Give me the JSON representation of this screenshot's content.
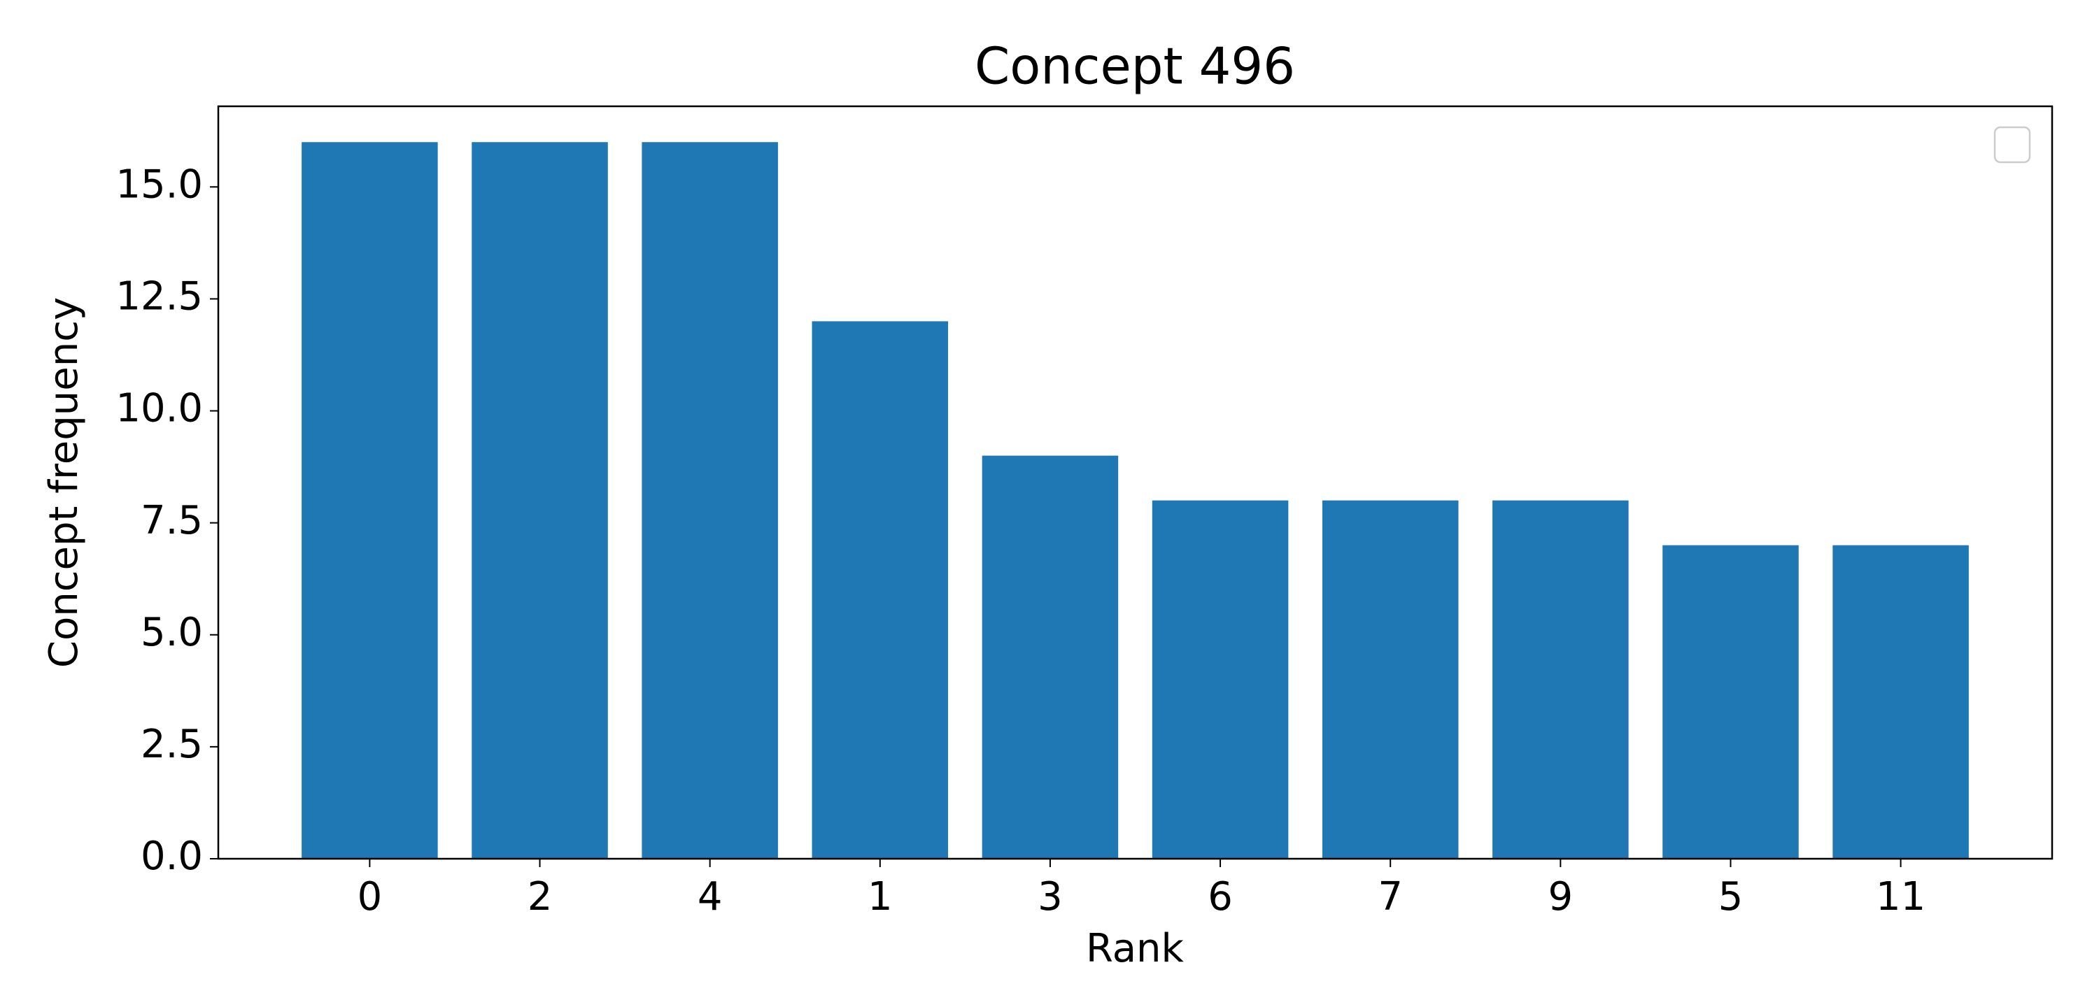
{
  "chart_data": {
    "type": "bar",
    "title": "Concept 496",
    "x_label": "Rank",
    "y_label": "Concept frequency",
    "categories": [
      "0",
      "2",
      "4",
      "1",
      "3",
      "6",
      "7",
      "9",
      "5",
      "11"
    ],
    "values": [
      16,
      16,
      16,
      12,
      9,
      8,
      8,
      8,
      7,
      7
    ],
    "color": "#1f77b4",
    "ylim": [
      0,
      16.8
    ],
    "yticks": [
      {
        "value": 0,
        "label": "0.0"
      },
      {
        "value": 2.5,
        "label": "2.5"
      },
      {
        "value": 5,
        "label": "5.0"
      },
      {
        "value": 7.5,
        "label": "7.5"
      },
      {
        "value": 10,
        "label": "10.0"
      },
      {
        "value": 12.5,
        "label": "12.5"
      },
      {
        "value": 15,
        "label": "15.0"
      }
    ],
    "grid": false
  }
}
